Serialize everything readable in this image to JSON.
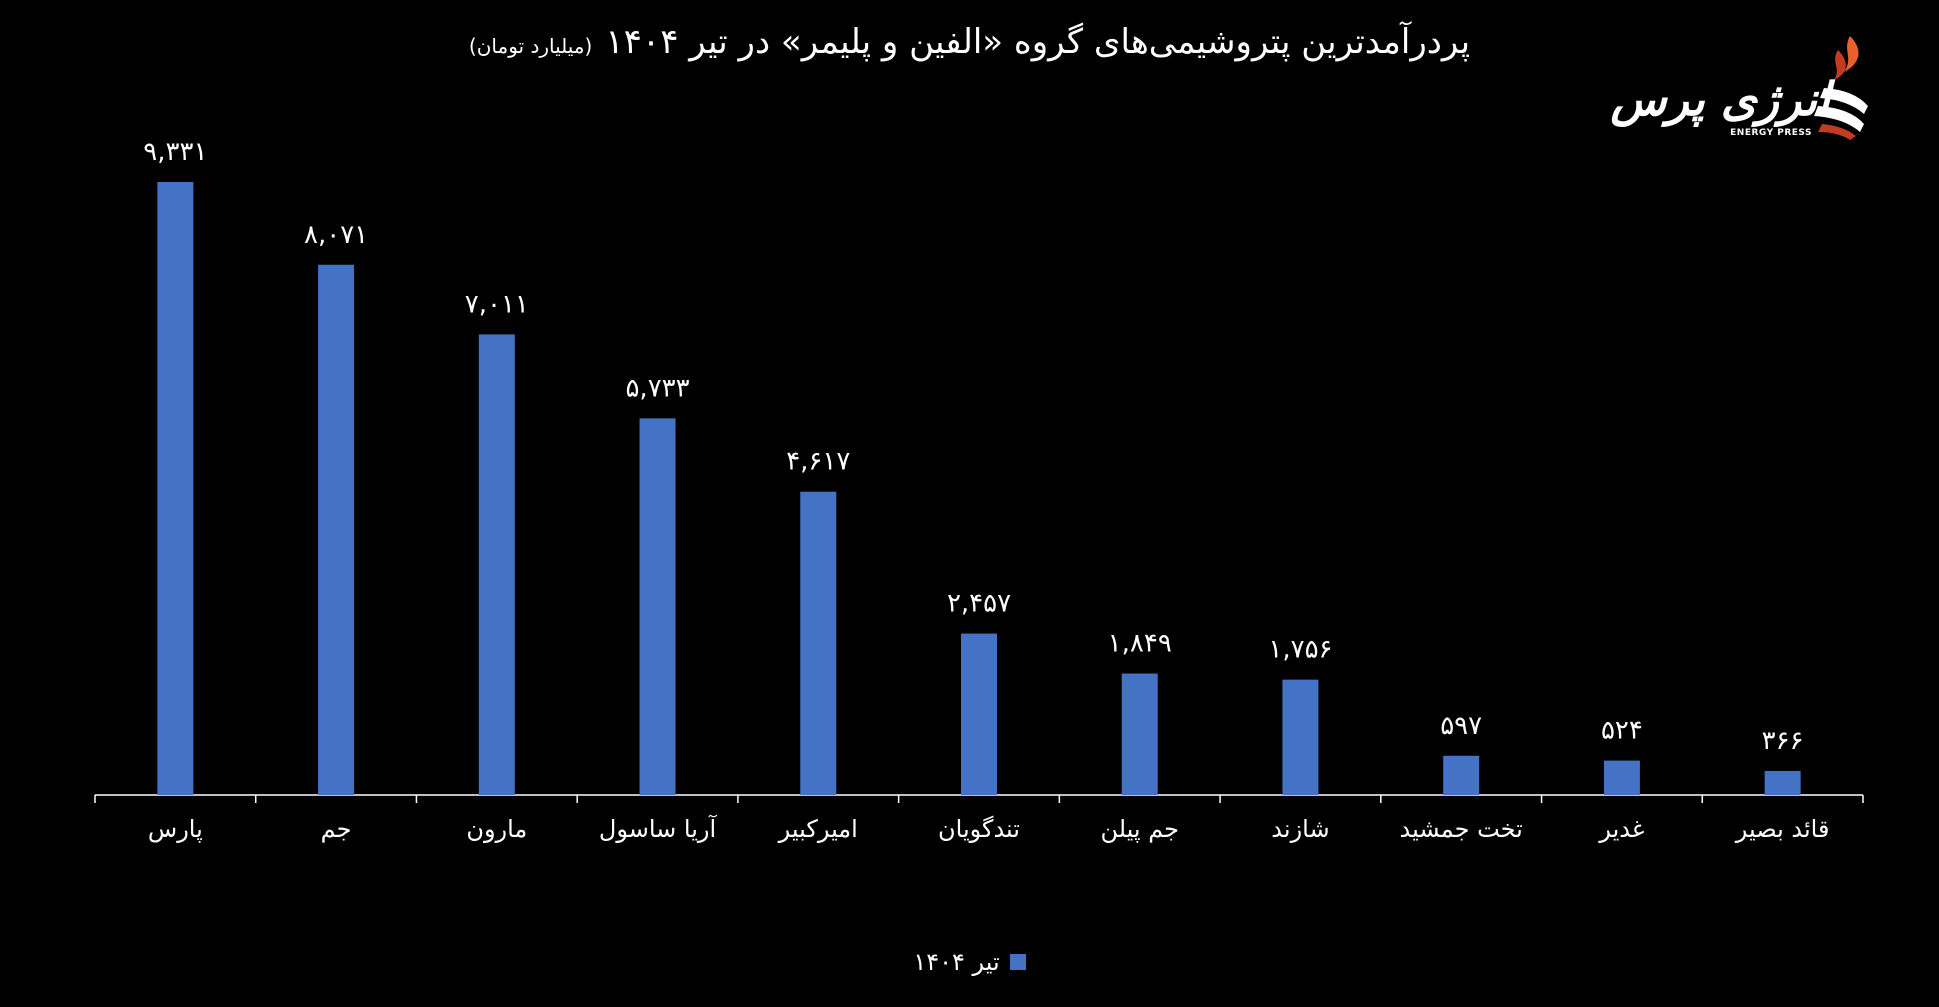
{
  "header": {
    "title": "پردرآمدترین پتروشیمی‌های گروه «الفین و پلیمر» در تیر ۱۴۰۴",
    "subtitle": "(میلیارد تومان)"
  },
  "logo": {
    "brand": "انرژی پرس",
    "brand_en": "ENERGY PRESS"
  },
  "chart_data": {
    "type": "bar",
    "title": "پردرآمدترین پتروشیمی‌های گروه «الفین و پلیمر» در تیر ۱۴۰۴",
    "subtitle": "(میلیارد تومان)",
    "categories": [
      "پارس",
      "جم",
      "مارون",
      "آریا ساسول",
      "امیرکبیر",
      "تندگویان",
      "جم پیلن",
      "شازند",
      "تخت جمشید",
      "غدیر",
      "قائد بصیر"
    ],
    "series": [
      {
        "name": "تیر ۱۴۰۴",
        "values": [
          9331,
          8071,
          7011,
          5733,
          4617,
          2457,
          1849,
          1756,
          597,
          524,
          366
        ],
        "labels": [
          "۹,۳۳۱",
          "۸,۰۷۱",
          "۷,۰۱۱",
          "۵,۷۳۳",
          "۴,۶۱۷",
          "۲,۴۵۷",
          "۱,۸۴۹",
          "۱,۷۵۶",
          "۵۹۷",
          "۵۲۴",
          "۳۶۶"
        ],
        "color": "#4472c4"
      }
    ],
    "xlabel": "",
    "ylabel": "",
    "ylim": [
      0,
      9331
    ],
    "grid": false,
    "legend_position": "bottom"
  }
}
